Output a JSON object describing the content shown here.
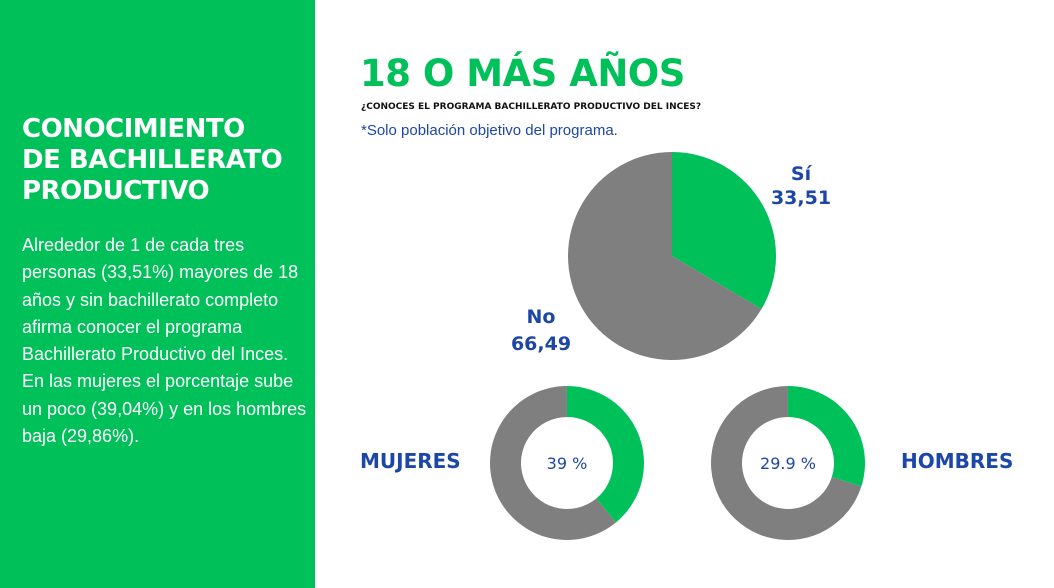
{
  "sidebar": {
    "title_lines": [
      "CONOCIMIENTO",
      "DE BACHILLERATO",
      "PRODUCTIVO"
    ],
    "body": "Alrededor de 1 de cada tres personas (33,51%) mayores de 18 años y sin bachillerato completo afirma conocer el programa Bachillerato Productivo del Inces. En las mujeres el porcentaje sube un poco (39,04%) y en los hombres baja (29,86%)."
  },
  "header": {
    "title": "18 O MÁS AÑOS",
    "question": "¿CONOCES EL PROGRAMA BACHILLERATO PRODUCTIVO DEL INCES?",
    "note": "*Solo población objetivo del programa."
  },
  "colors": {
    "green": "#00c05a",
    "gray": "#7f7f7f",
    "blue": "#1d47a6"
  },
  "chart_data": [
    {
      "type": "pie",
      "slices": [
        {
          "label": "Sí",
          "value": 33.51,
          "value_label": "33,51",
          "color": "#00c05a"
        },
        {
          "label": "No",
          "value": 66.49,
          "value_label": "66,49",
          "color": "#7f7f7f"
        }
      ]
    },
    {
      "type": "pie",
      "label": "MUJERES",
      "value": 39,
      "value_label": "39 %",
      "color": "#00c05a",
      "rest_color": "#7f7f7f"
    },
    {
      "type": "pie",
      "label": "HOMBRES",
      "value": 29.9,
      "value_label": "29.9 %",
      "color": "#00c05a",
      "rest_color": "#7f7f7f"
    }
  ]
}
